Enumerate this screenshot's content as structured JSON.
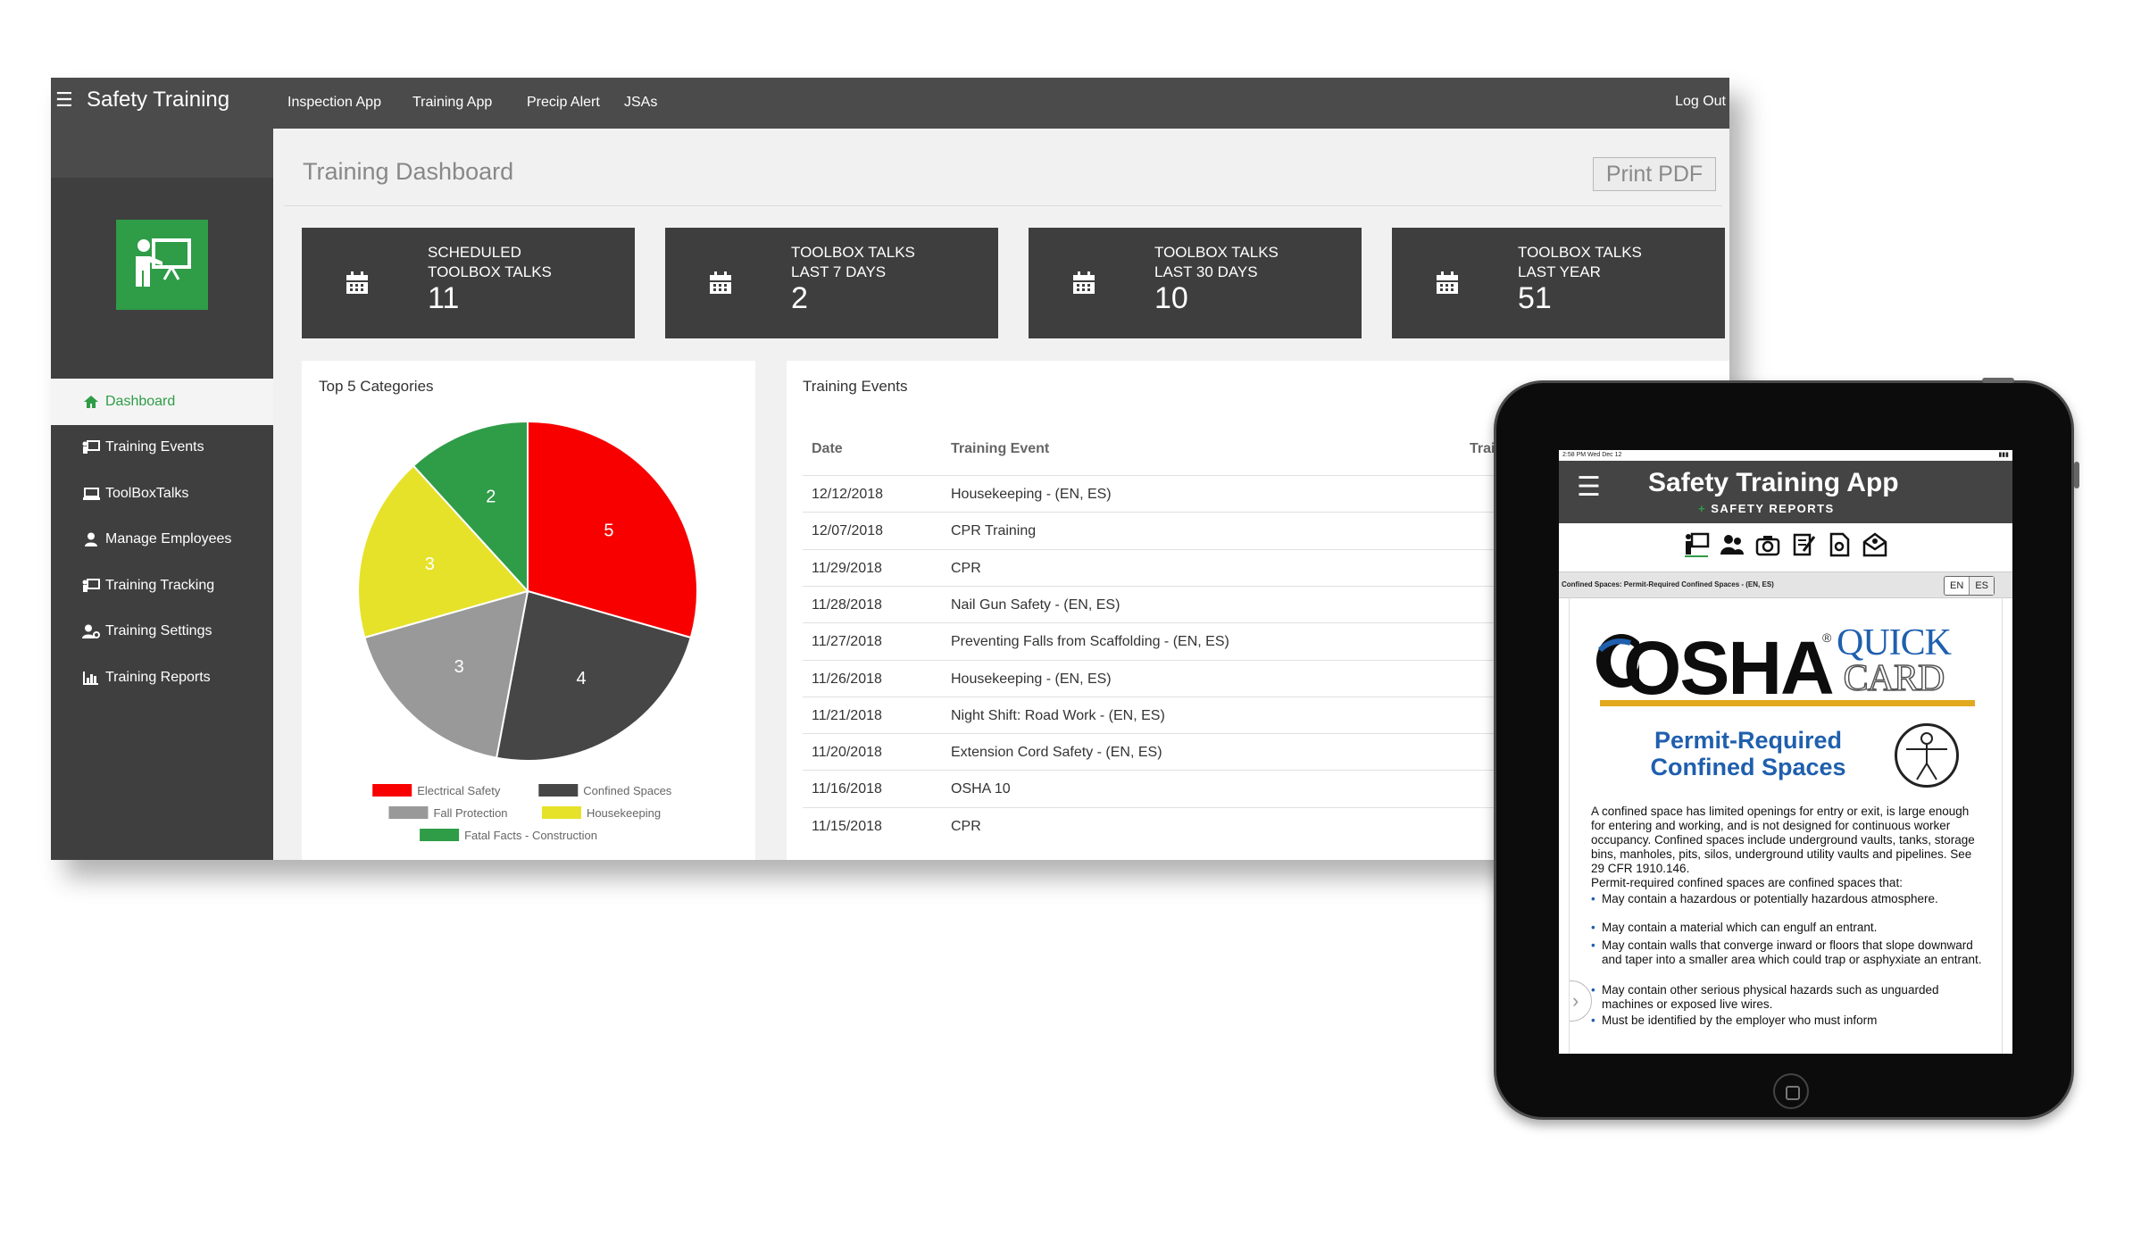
{
  "topbar": {
    "brand": "Safety Training",
    "nav": [
      "Inspection App",
      "Training App",
      "Precip Alert",
      "JSAs"
    ],
    "logout": "Log Out"
  },
  "sidebar": {
    "items": [
      {
        "label": "Dashboard",
        "icon": "home-icon",
        "active": true
      },
      {
        "label": "Training Events",
        "icon": "presentation-icon"
      },
      {
        "label": "ToolBoxTalks",
        "icon": "chalkboard-icon"
      },
      {
        "label": "Manage Employees",
        "icon": "user-icon"
      },
      {
        "label": "Training Tracking",
        "icon": "presentation-icon"
      },
      {
        "label": "Training Settings",
        "icon": "users-gear-icon"
      },
      {
        "label": "Training Reports",
        "icon": "bar-chart-icon"
      }
    ]
  },
  "page": {
    "title": "Training Dashboard",
    "print_label": "Print PDF"
  },
  "stats": [
    {
      "line1": "Scheduled",
      "line2": "ToolBox Talks",
      "value": "11"
    },
    {
      "line1": "ToolBox Talks",
      "line2": "Last 7 Days",
      "value": "2"
    },
    {
      "line1": "ToolBox Talks",
      "line2": "Last 30 Days",
      "value": "10"
    },
    {
      "line1": "ToolBox Talks",
      "line2": "Last Year",
      "value": "51"
    }
  ],
  "chart_data": {
    "type": "pie",
    "title": "Top 5 Categories",
    "categories": [
      "Electrical Safety",
      "Confined Spaces",
      "Fall Protection",
      "Housekeeping",
      "Fatal Facts - Construction"
    ],
    "values": [
      5,
      4,
      3,
      3,
      2
    ],
    "colors": [
      "#f80000",
      "#464646",
      "#999999",
      "#e6e22a",
      "#2f9c47"
    ],
    "legend": "bottom"
  },
  "events": {
    "title": "Training Events",
    "headers": {
      "date": "Date",
      "event": "Training Event",
      "trainer": "Trainer"
    },
    "rows": [
      {
        "date": "12/12/2018",
        "event": "Housekeeping - (EN, ES)"
      },
      {
        "date": "12/07/2018",
        "event": "CPR Training"
      },
      {
        "date": "11/29/2018",
        "event": "CPR"
      },
      {
        "date": "11/28/2018",
        "event": "Nail Gun Safety - (EN, ES)"
      },
      {
        "date": "11/27/2018",
        "event": "Preventing Falls from Scaffolding - (EN, ES)"
      },
      {
        "date": "11/26/2018",
        "event": "Housekeeping - (EN, ES)"
      },
      {
        "date": "11/21/2018",
        "event": "Night Shift: Road Work - (EN, ES)"
      },
      {
        "date": "11/20/2018",
        "event": "Extension Cord Safety - (EN, ES)"
      },
      {
        "date": "11/16/2018",
        "event": "OSHA 10"
      },
      {
        "date": "11/15/2018",
        "event": "CPR"
      }
    ]
  },
  "tablet": {
    "status_time": "2:58 PM  Wed Dec 12",
    "app_title": "Safety Training App",
    "subtitle_plus": "+",
    "subtitle": "SAFETY REPORTS",
    "doc_title": "Confined Spaces: Permit-Required Confined Spaces - (EN, ES)",
    "lang": [
      "EN",
      "ES"
    ],
    "osha": "OSHA",
    "osha_reg": "®",
    "quick": "QUICK",
    "card": "CARD",
    "permit_line1": "Permit-Required",
    "permit_line2": "Confined Spaces",
    "para1": "A confined space has limited openings for entry or exit, is large enough for entering and working, and is not designed for continuous worker occupancy. Confined spaces include underground vaults, tanks, storage bins, manholes, pits, silos, underground utility vaults and pipelines. See 29 CFR 1910.146.",
    "para2": "Permit-required confined spaces are confined spaces that:",
    "bullets": [
      "May contain a hazardous or potentially hazardous atmosphere.",
      "May contain a material which can engulf an entrant.",
      "May contain walls that converge inward or floors that slope downward and taper into a smaller area which could trap or asphyxiate an entrant.",
      "May contain other serious physical hazards such as unguarded machines or exposed live wires.",
      "Must be identified by the employer who must inform"
    ]
  }
}
